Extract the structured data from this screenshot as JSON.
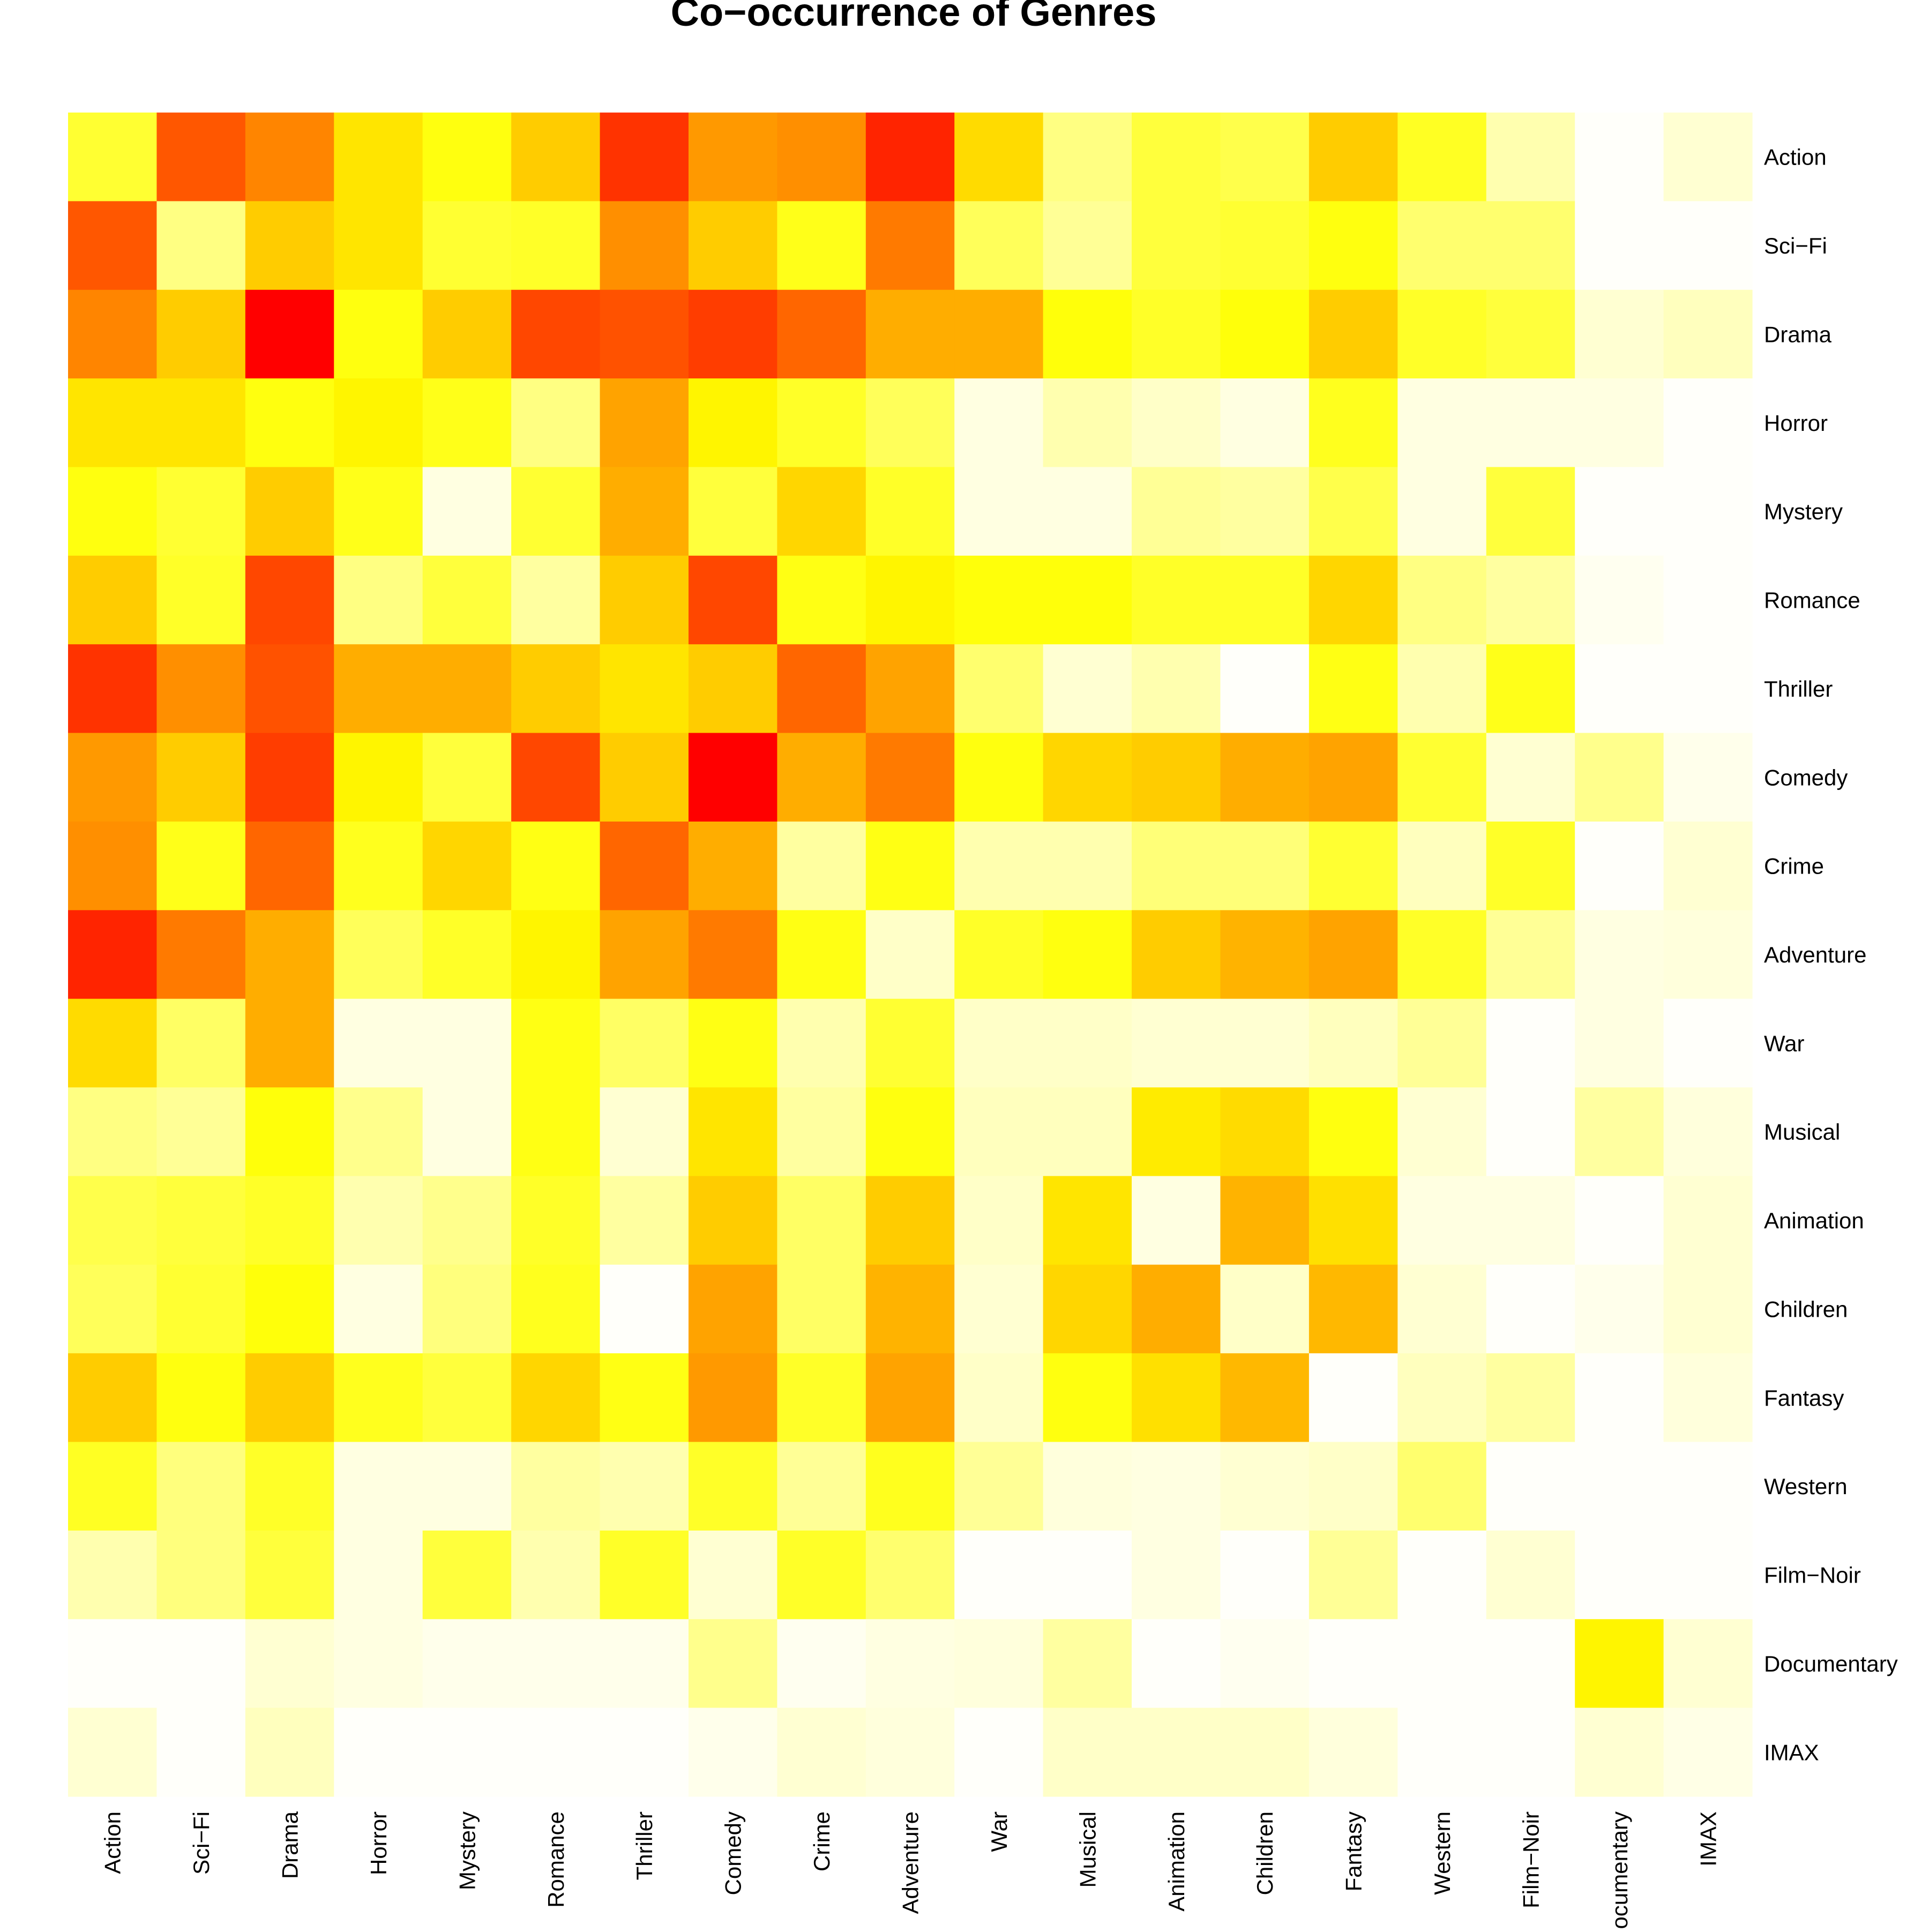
{
  "chart_data": {
    "type": "heatmap",
    "title": "Co−occurrence of Genres",
    "xlabel": "",
    "ylabel": "",
    "grid": false,
    "legend": "none",
    "color_scale": "heat (red = high, white = low)",
    "rows": [
      "Action",
      "Sci−Fi",
      "Drama",
      "Horror",
      "Mystery",
      "Romance",
      "Thriller",
      "Comedy",
      "Crime",
      "Adventure",
      "War",
      "Musical",
      "Animation",
      "Children",
      "Fantasy",
      "Western",
      "Film−Noir",
      "Documentary",
      "IMAX"
    ],
    "columns": [
      "Action",
      "Sci−Fi",
      "Drama",
      "Horror",
      "Mystery",
      "Romance",
      "Thriller",
      "Comedy",
      "Crime",
      "Adventure",
      "War",
      "Musical",
      "Animation",
      "Children",
      "Fantasy",
      "Western",
      "Film−Noir",
      "Documentary",
      "IMAX"
    ],
    "values": [
      [
        0.4,
        0.83,
        0.74,
        0.55,
        0.47,
        0.6,
        0.9,
        0.7,
        0.72,
        0.93,
        0.57,
        0.24,
        0.38,
        0.35,
        0.6,
        0.43,
        0.15,
        0.0,
        0.08
      ],
      [
        0.83,
        0.24,
        0.6,
        0.55,
        0.4,
        0.42,
        0.72,
        0.6,
        0.45,
        0.76,
        0.32,
        0.2,
        0.38,
        0.4,
        0.47,
        0.28,
        0.28,
        0.0,
        0.0
      ],
      [
        0.74,
        0.6,
        1.0,
        0.47,
        0.6,
        0.86,
        0.84,
        0.88,
        0.8,
        0.66,
        0.66,
        0.48,
        0.42,
        0.48,
        0.6,
        0.42,
        0.38,
        0.08,
        0.12
      ],
      [
        0.55,
        0.55,
        0.47,
        0.52,
        0.45,
        0.24,
        0.68,
        0.52,
        0.42,
        0.32,
        0.05,
        0.15,
        0.1,
        0.05,
        0.44,
        0.05,
        0.05,
        0.05,
        0.0
      ],
      [
        0.47,
        0.4,
        0.6,
        0.45,
        0.05,
        0.4,
        0.66,
        0.38,
        0.58,
        0.42,
        0.05,
        0.05,
        0.2,
        0.18,
        0.35,
        0.05,
        0.38,
        0.0,
        0.0
      ],
      [
        0.6,
        0.42,
        0.86,
        0.24,
        0.38,
        0.18,
        0.6,
        0.86,
        0.46,
        0.52,
        0.48,
        0.48,
        0.42,
        0.42,
        0.58,
        0.24,
        0.18,
        0.02,
        0.0
      ],
      [
        0.9,
        0.72,
        0.84,
        0.66,
        0.66,
        0.6,
        0.55,
        0.6,
        0.8,
        0.68,
        0.28,
        0.08,
        0.15,
        0.0,
        0.46,
        0.15,
        0.45,
        0.0,
        0.0
      ],
      [
        0.7,
        0.6,
        0.88,
        0.52,
        0.38,
        0.86,
        0.6,
        1.0,
        0.66,
        0.76,
        0.47,
        0.58,
        0.6,
        0.66,
        0.68,
        0.4,
        0.08,
        0.22,
        0.03
      ],
      [
        0.72,
        0.45,
        0.8,
        0.44,
        0.58,
        0.46,
        0.8,
        0.66,
        0.18,
        0.46,
        0.15,
        0.15,
        0.26,
        0.26,
        0.4,
        0.12,
        0.42,
        0.0,
        0.08
      ],
      [
        0.93,
        0.76,
        0.66,
        0.32,
        0.42,
        0.52,
        0.68,
        0.76,
        0.46,
        0.1,
        0.42,
        0.47,
        0.6,
        0.65,
        0.68,
        0.42,
        0.2,
        0.05,
        0.06
      ],
      [
        0.57,
        0.3,
        0.66,
        0.05,
        0.05,
        0.46,
        0.3,
        0.46,
        0.15,
        0.4,
        0.1,
        0.1,
        0.08,
        0.08,
        0.12,
        0.2,
        0.0,
        0.05,
        0.0
      ],
      [
        0.24,
        0.2,
        0.48,
        0.22,
        0.05,
        0.46,
        0.08,
        0.55,
        0.18,
        0.47,
        0.12,
        0.12,
        0.54,
        0.57,
        0.47,
        0.08,
        0.0,
        0.18,
        0.06
      ],
      [
        0.35,
        0.38,
        0.42,
        0.15,
        0.22,
        0.42,
        0.18,
        0.6,
        0.3,
        0.6,
        0.1,
        0.55,
        0.05,
        0.65,
        0.56,
        0.05,
        0.05,
        0.0,
        0.08
      ],
      [
        0.32,
        0.4,
        0.48,
        0.05,
        0.25,
        0.44,
        0.0,
        0.68,
        0.3,
        0.65,
        0.08,
        0.58,
        0.66,
        0.1,
        0.64,
        0.08,
        0.0,
        0.03,
        0.08
      ],
      [
        0.6,
        0.47,
        0.6,
        0.44,
        0.38,
        0.58,
        0.46,
        0.7,
        0.42,
        0.68,
        0.1,
        0.47,
        0.56,
        0.64,
        0.0,
        0.12,
        0.18,
        0.0,
        0.06
      ],
      [
        0.43,
        0.25,
        0.42,
        0.05,
        0.05,
        0.18,
        0.15,
        0.42,
        0.2,
        0.44,
        0.2,
        0.06,
        0.05,
        0.08,
        0.1,
        0.28,
        0.0,
        0.0,
        0.0
      ],
      [
        0.15,
        0.25,
        0.38,
        0.05,
        0.38,
        0.15,
        0.42,
        0.08,
        0.42,
        0.28,
        0.0,
        0.0,
        0.05,
        0.0,
        0.2,
        0.0,
        0.08,
        0.0,
        0.0
      ],
      [
        0.0,
        0.0,
        0.08,
        0.05,
        0.03,
        0.03,
        0.03,
        0.22,
        0.02,
        0.05,
        0.06,
        0.18,
        0.0,
        0.02,
        0.0,
        0.0,
        0.0,
        0.52,
        0.08
      ],
      [
        0.08,
        0.0,
        0.12,
        0.0,
        0.0,
        0.0,
        0.0,
        0.03,
        0.08,
        0.06,
        0.0,
        0.1,
        0.1,
        0.1,
        0.06,
        0.0,
        0.0,
        0.08,
        0.04
      ]
    ]
  }
}
